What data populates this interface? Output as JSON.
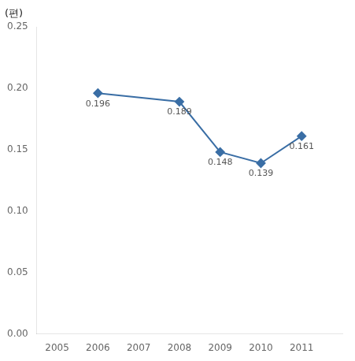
{
  "chart_data": {
    "type": "line",
    "ylabel": "(편)",
    "x": [
      2006,
      2008,
      2009,
      2010,
      2011
    ],
    "values": [
      0.196,
      0.189,
      0.148,
      0.139,
      0.161
    ],
    "color": "#3a6ea5",
    "marker": "diamond",
    "xlim": [
      2004.5,
      2012
    ],
    "xticks": [
      2005,
      2006,
      2007,
      2008,
      2009,
      2010,
      2011
    ],
    "ylim": [
      0,
      0.25
    ],
    "yticks": [
      {
        "value": 0,
        "label": "0.00"
      },
      0.05,
      {
        "value": 0.1,
        "label": "0.10"
      },
      0.15,
      {
        "value": 0.2,
        "label": "0.20"
      },
      0.25
    ],
    "grid": false,
    "data_labels": true
  }
}
